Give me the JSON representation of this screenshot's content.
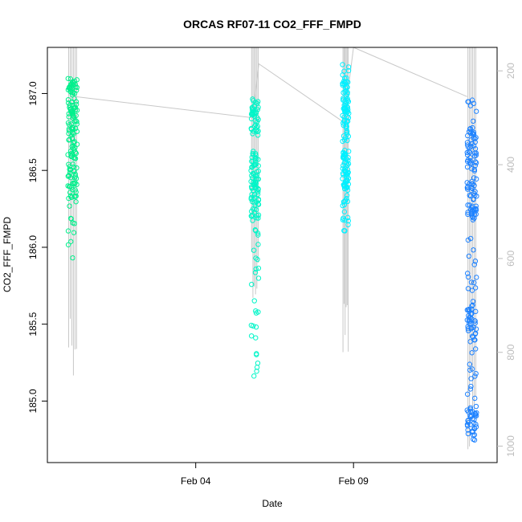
{
  "chart_data": {
    "type": "scatter",
    "title": "ORCAS RF07-11 CO2_FFF_FMPD",
    "xlabel": "Date",
    "ylabel": "CO2_FFF_FMPD",
    "x_ticks": [
      {
        "label": "Feb 04",
        "day": 4
      },
      {
        "label": "Feb 09",
        "day": 9
      }
    ],
    "xlim_days": [
      -0.7,
      13.55
    ],
    "ylim": [
      184.6,
      187.3
    ],
    "y_ticks": [
      185.0,
      185.5,
      186.0,
      186.5,
      187.0
    ],
    "y_tick_labels": [
      "185.0",
      "185.5",
      "186.0",
      "186.5",
      "187.0"
    ],
    "secondary_axis": {
      "quantity": "pressure",
      "ticks": [
        200,
        400,
        600,
        800,
        1000
      ],
      "tick_labels": [
        "200",
        "400",
        "600",
        "800",
        "1000"
      ],
      "range_top": 150,
      "range_bottom": 1035,
      "reversed": true,
      "color": "#bdbdbd"
    },
    "grid": false,
    "legend": "none",
    "point_marker": "open-circle",
    "flights": [
      {
        "day_start": -0.05,
        "day_end": 0.25,
        "color": "#00f08c",
        "co2_min": 185.92,
        "co2_max": 187.1,
        "co2_clusters": [
          186.42,
          186.7,
          186.96
        ],
        "point_count": 150,
        "pressure_min": 150,
        "pressure_max": 850
      },
      {
        "day_start": 5.75,
        "day_end": 6.0,
        "color": "#00f5c8",
        "co2_min": 185.1,
        "co2_max": 186.98,
        "co2_clusters": [
          186.3,
          186.5,
          186.85
        ],
        "point_count": 150,
        "pressure_min": 150,
        "pressure_max": 700
      },
      {
        "day_start": 8.65,
        "day_end": 8.85,
        "color": "#00f0ff",
        "co2_min": 186.1,
        "co2_max": 187.2,
        "co2_clusters": [
          186.5,
          186.8,
          187.0
        ],
        "point_count": 150,
        "pressure_min": 150,
        "pressure_max": 835
      },
      {
        "day_start": 12.6,
        "day_end": 12.9,
        "color": "#1e82ff",
        "co2_min": 184.74,
        "co2_max": 186.97,
        "co2_clusters": [
          184.85,
          185.5,
          186.3,
          186.65
        ],
        "point_count": 200,
        "pressure_min": 150,
        "pressure_max": 1035
      }
    ],
    "connector_line": {
      "color": "#c8c8c8",
      "points": [
        {
          "day": 0.2,
          "pressure": 255
        },
        {
          "day": 5.8,
          "pressure": 300
        },
        {
          "day": 6.0,
          "pressure": 185
        },
        {
          "day": 8.7,
          "pressure": 310
        },
        {
          "day": 9.0,
          "pressure": 150
        },
        {
          "day": 12.6,
          "pressure": 255
        }
      ]
    }
  }
}
